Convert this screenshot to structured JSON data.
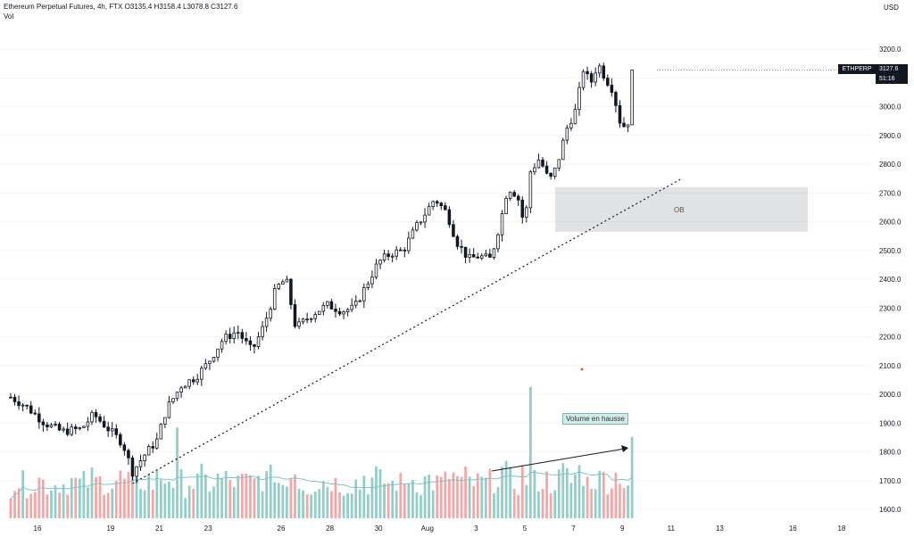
{
  "header": {
    "title": "Ethereum Perpetual Futures, 4h, FTX",
    "ohlc": "O3135.4 H3158.4 L3078.8 C3127.6",
    "sub": "Vol"
  },
  "currency": "USD",
  "symbol_tag": "ETHPERP",
  "last_price": "3127.6",
  "countdown": "51:16",
  "annotations": {
    "ob": "OB",
    "volume": "Volume en hausse"
  },
  "colors": {
    "up": "#26a69a",
    "down": "#ef5350",
    "vol_up": "#92cdc7",
    "vol_down": "#f6a5a4"
  },
  "chart_data": {
    "type": "candlestick",
    "interval": "4h",
    "y_ticks": [
      "3200.0",
      "3100.0",
      "3000.0",
      "2900.0",
      "2800.0",
      "2700.0",
      "2600.0",
      "2500.0",
      "2400.0",
      "2300.0",
      "2200.0",
      "2100.0",
      "2000.0",
      "1900.0",
      "1800.0",
      "1700.0",
      "1600.0"
    ],
    "ylim": [
      1580,
      3240
    ],
    "x_ticks": [
      {
        "label": "16",
        "day": 16
      },
      {
        "label": "19",
        "day": 19
      },
      {
        "label": "21",
        "day": 21
      },
      {
        "label": "23",
        "day": 23
      },
      {
        "label": "26",
        "day": 26
      },
      {
        "label": "28",
        "day": 28
      },
      {
        "label": "30",
        "day": 30
      },
      {
        "label": "Aug",
        "day": 32
      },
      {
        "label": "3",
        "day": 34
      },
      {
        "label": "5",
        "day": 36
      },
      {
        "label": "7",
        "day": 38
      },
      {
        "label": "9",
        "day": 40
      },
      {
        "label": "11",
        "day": 42
      },
      {
        "label": "13",
        "day": 44
      },
      {
        "label": "16",
        "day": 47
      },
      {
        "label": "18",
        "day": 49
      }
    ],
    "price_anchors": [
      [
        14.9,
        1990
      ],
      [
        15.5,
        1960
      ],
      [
        16.3,
        1900
      ],
      [
        17.0,
        1870
      ],
      [
        17.8,
        1880
      ],
      [
        18.3,
        1930
      ],
      [
        18.9,
        1880
      ],
      [
        19.5,
        1830
      ],
      [
        19.9,
        1730
      ],
      [
        20.4,
        1790
      ],
      [
        20.9,
        1840
      ],
      [
        21.3,
        1950
      ],
      [
        21.9,
        2030
      ],
      [
        22.5,
        2060
      ],
      [
        23.0,
        2110
      ],
      [
        23.6,
        2190
      ],
      [
        24.2,
        2220
      ],
      [
        24.8,
        2150
      ],
      [
        25.3,
        2240
      ],
      [
        25.8,
        2370
      ],
      [
        26.2,
        2400
      ],
      [
        26.6,
        2230
      ],
      [
        27.3,
        2280
      ],
      [
        27.9,
        2310
      ],
      [
        28.5,
        2290
      ],
      [
        29.0,
        2300
      ],
      [
        29.5,
        2380
      ],
      [
        30.0,
        2460
      ],
      [
        30.5,
        2490
      ],
      [
        31.0,
        2500
      ],
      [
        31.6,
        2590
      ],
      [
        32.0,
        2640
      ],
      [
        32.3,
        2680
      ],
      [
        32.8,
        2630
      ],
      [
        33.2,
        2530
      ],
      [
        33.7,
        2470
      ],
      [
        34.1,
        2480
      ],
      [
        34.6,
        2470
      ],
      [
        35.0,
        2600
      ],
      [
        35.3,
        2720
      ],
      [
        35.7,
        2690
      ],
      [
        36.0,
        2580
      ],
      [
        36.2,
        2770
      ],
      [
        36.6,
        2820
      ],
      [
        37.0,
        2740
      ],
      [
        37.3,
        2790
      ],
      [
        37.7,
        2920
      ],
      [
        38.1,
        2990
      ],
      [
        38.4,
        3130
      ],
      [
        38.7,
        3080
      ],
      [
        39.0,
        3150
      ],
      [
        39.3,
        3100
      ],
      [
        39.6,
        3060
      ],
      [
        39.9,
        2950
      ],
      [
        40.2,
        2920
      ],
      [
        40.45,
        3127.6
      ]
    ],
    "volume_range": [
      0,
      280
    ]
  }
}
